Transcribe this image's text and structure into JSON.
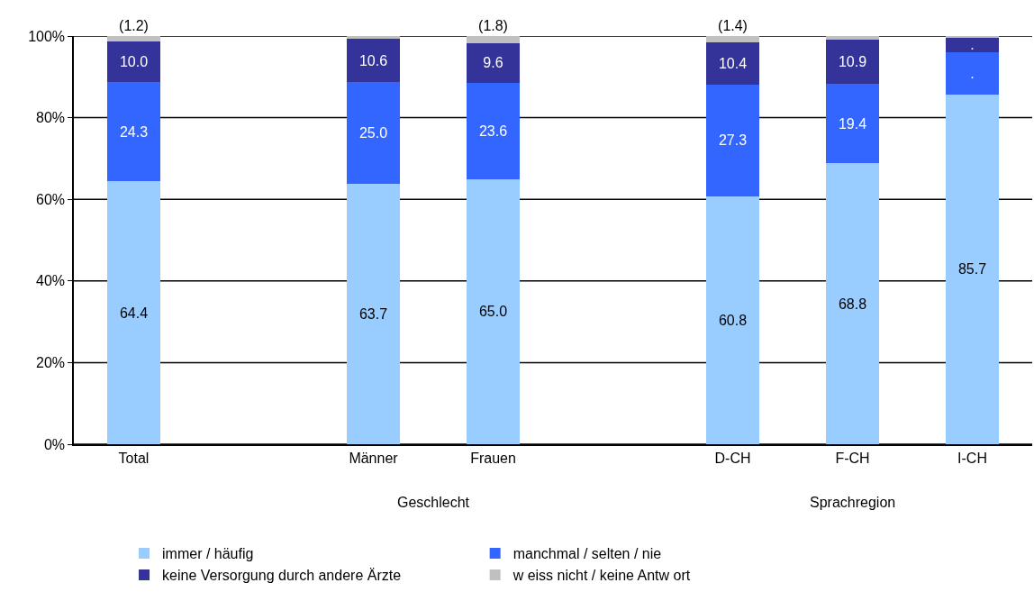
{
  "chart_data": {
    "type": "bar",
    "stacked": true,
    "categories": [
      "Total",
      null,
      "Männer",
      "Frauen",
      null,
      "D-CH",
      "F-CH",
      "I-CH"
    ],
    "series": [
      {
        "name": "immer / häufig",
        "color": "#99ccff",
        "values": [
          64.4,
          null,
          63.7,
          65.0,
          null,
          60.8,
          68.8,
          85.7
        ],
        "value_labels": [
          "64.4",
          null,
          "63.7",
          "65.0",
          null,
          "60.8",
          "68.8",
          "85.7"
        ]
      },
      {
        "name": "manchmal / selten / nie",
        "color": "#3366ff",
        "values": [
          24.3,
          null,
          25.0,
          23.6,
          null,
          27.3,
          19.4,
          10.4
        ],
        "value_labels": [
          "24.3",
          null,
          "25.0",
          "23.6",
          null,
          "27.3",
          "19.4",
          "."
        ]
      },
      {
        "name": "keine Versorgung durch andere Ärzte",
        "color": "#333399",
        "values": [
          10.0,
          null,
          10.6,
          9.6,
          null,
          10.4,
          10.9,
          3.5
        ],
        "value_labels": [
          "10.0",
          null,
          "10.6",
          "9.6",
          null,
          "10.4",
          "10.9",
          "."
        ]
      },
      {
        "name": "w eiss nicht / keine Antw ort",
        "color": "#c0c0c0",
        "values": [
          1.2,
          null,
          0.7,
          1.8,
          null,
          1.4,
          0.9,
          0.4
        ],
        "value_labels": [
          "(1.2)",
          null,
          null,
          "(1.8)",
          null,
          "(1.4)",
          null,
          null
        ]
      }
    ],
    "ylim": [
      0,
      100
    ],
    "yticks": [
      {
        "value": 0,
        "label": "0%"
      },
      {
        "value": 20,
        "label": "20%"
      },
      {
        "value": 40,
        "label": "40%"
      },
      {
        "value": 60,
        "label": "60%"
      },
      {
        "value": 80,
        "label": "80%"
      },
      {
        "value": 100,
        "label": "100%"
      }
    ],
    "grid": "y",
    "legend": "bottom",
    "annotations": [
      "Geschlecht",
      "Sprachregion"
    ]
  }
}
